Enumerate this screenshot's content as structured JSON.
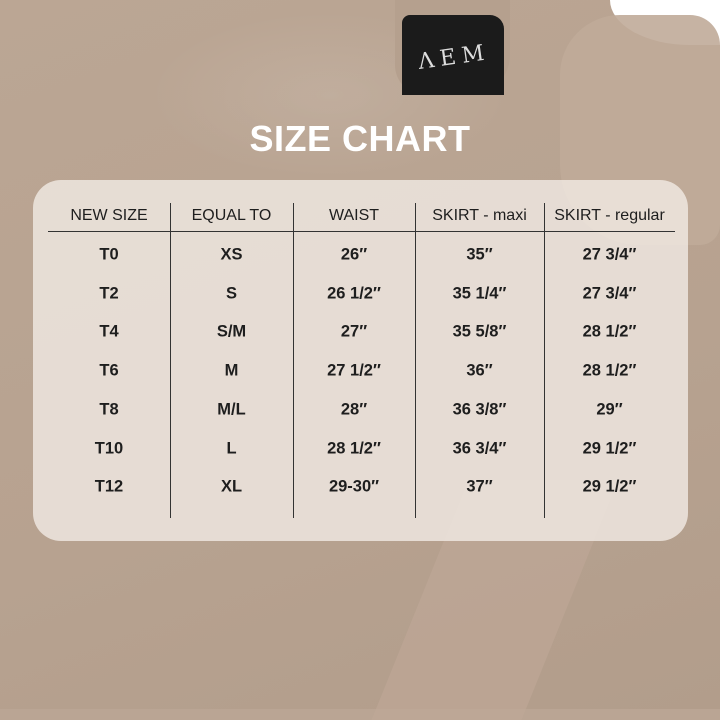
{
  "title": "SIZE CHART",
  "label_logo": "AEMI",
  "headers": [
    "NEW SIZE",
    "EQUAL TO",
    "WAIST",
    "SKIRT - maxi",
    "SKIRT - regular"
  ],
  "rows": [
    [
      "T0",
      "XS",
      "26″",
      "35″",
      "27 3/4″"
    ],
    [
      "T2",
      "S",
      "26 1/2″",
      "35 1/4″",
      "27 3/4″"
    ],
    [
      "T4",
      "S/M",
      "27″",
      "35 5/8″",
      "28 1/2″"
    ],
    [
      "T6",
      "M",
      "27 1/2″",
      "36″",
      "28 1/2″"
    ],
    [
      "T8",
      "M/L",
      "28″",
      "36 3/8″",
      "29″"
    ],
    [
      "T10",
      "L",
      "28 1/2″",
      "36 3/4″",
      "29 1/2″"
    ],
    [
      "T12",
      "XL",
      "29-30″",
      "37″",
      "29 1/2″"
    ]
  ],
  "colors": {
    "background": "#baa594",
    "title": "#ffffff",
    "panel": "#f0e9e3",
    "text": "#1e1e1e"
  }
}
